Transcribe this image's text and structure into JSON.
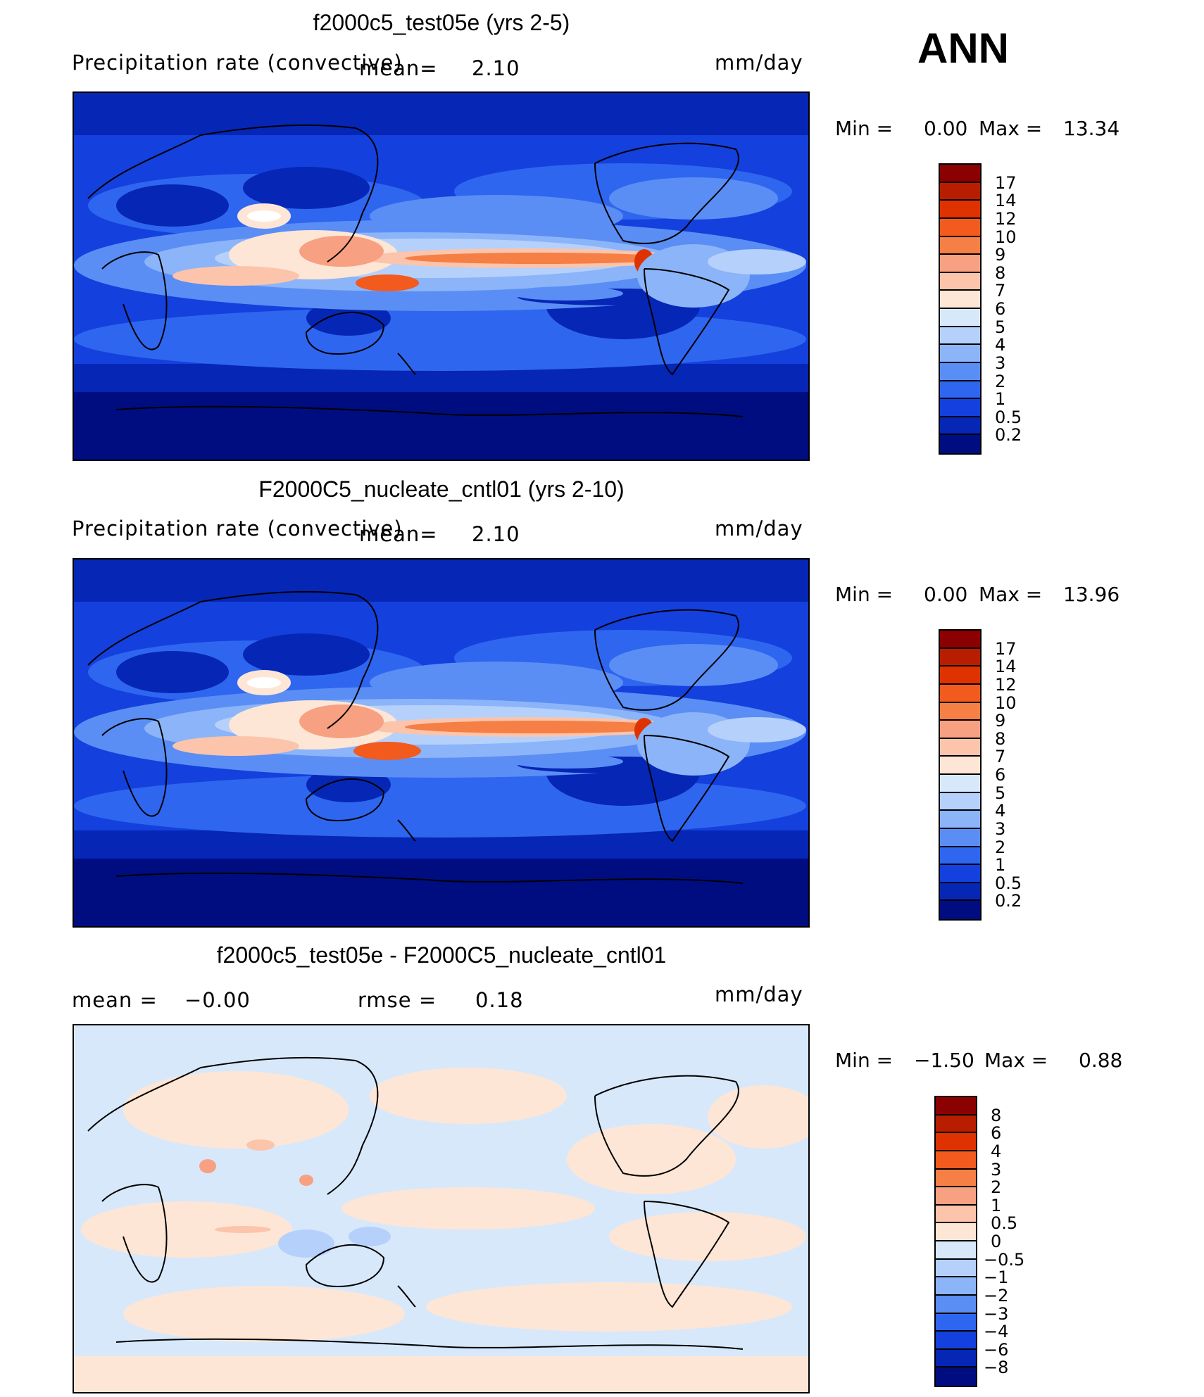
{
  "season": "ANN",
  "panels": [
    {
      "title": "f2000c5_test05e (yrs 2-5)",
      "variable": "Precipitation rate (convective)",
      "mean_label": "mean=",
      "mean_value": "2.10",
      "units": "mm/day",
      "min_label": "Min =",
      "min_value": "0.00",
      "max_label": "Max =",
      "max_value": "13.34",
      "colorbar": {
        "levels": [
          "17",
          "14",
          "12",
          "10",
          "9",
          "8",
          "7",
          "6",
          "5",
          "4",
          "3",
          "2",
          "1",
          "0.5",
          "0.2"
        ],
        "colors": [
          "#8b0000",
          "#b81d00",
          "#de3300",
          "#f25a1e",
          "#f57f45",
          "#f7a182",
          "#fbc4ab",
          "#fde6d6",
          "#d8e8fb",
          "#b5d1fb",
          "#8cb4f8",
          "#5a8ef5",
          "#2f66ef",
          "#1440dd",
          "#0626b5",
          "#000d80"
        ]
      }
    },
    {
      "title": "F2000C5_nucleate_cntl01 (yrs 2-10)",
      "variable": "Precipitation rate (convective)",
      "mean_label": "mean=",
      "mean_value": "2.10",
      "units": "mm/day",
      "min_label": "Min =",
      "min_value": "0.00",
      "max_label": "Max =",
      "max_value": "13.96",
      "colorbar": {
        "levels": [
          "17",
          "14",
          "12",
          "10",
          "9",
          "8",
          "7",
          "6",
          "5",
          "4",
          "3",
          "2",
          "1",
          "0.5",
          "0.2"
        ],
        "colors": [
          "#8b0000",
          "#b81d00",
          "#de3300",
          "#f25a1e",
          "#f57f45",
          "#f7a182",
          "#fbc4ab",
          "#fde6d6",
          "#d8e8fb",
          "#b5d1fb",
          "#8cb4f8",
          "#5a8ef5",
          "#2f66ef",
          "#1440dd",
          "#0626b5",
          "#000d80"
        ]
      }
    },
    {
      "title": "f2000c5_test05e - F2000C5_nucleate_cntl01",
      "mean_label": "mean =",
      "mean_value": "−0.00",
      "rmse_label": "rmse =",
      "rmse_value": "0.18",
      "units": "mm/day",
      "min_label": "Min =",
      "min_value": "−1.50",
      "max_label": "Max =",
      "max_value": "0.88",
      "colorbar": {
        "levels": [
          "8",
          "6",
          "4",
          "3",
          "2",
          "1",
          "0.5",
          "0",
          "−0.5",
          "−1",
          "−2",
          "−3",
          "−4",
          "−6",
          "−8"
        ],
        "colors": [
          "#8b0000",
          "#b81d00",
          "#de3300",
          "#f25a1e",
          "#f57f45",
          "#f7a182",
          "#fbc4ab",
          "#fde6d6",
          "#d8e8fb",
          "#b5d1fb",
          "#8cb4f8",
          "#5a8ef5",
          "#2f66ef",
          "#1440dd",
          "#0626b5",
          "#000d80"
        ]
      }
    }
  ]
}
